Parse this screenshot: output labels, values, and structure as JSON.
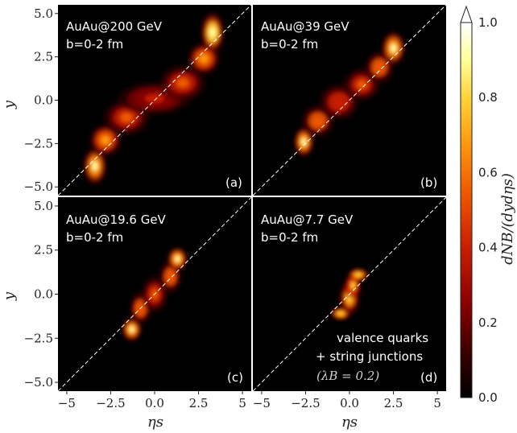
{
  "figure": {
    "panels": [
      {
        "id": "a",
        "title": "AuAu@200 GeV",
        "subtitle": "b=0-2 fm",
        "tag": "(a)"
      },
      {
        "id": "b",
        "title": "AuAu@39 GeV",
        "subtitle": "b=0-2 fm",
        "tag": "(b)"
      },
      {
        "id": "c",
        "title": "AuAu@19.6 GeV",
        "subtitle": "b=0-2 fm",
        "tag": "(c)"
      },
      {
        "id": "d",
        "title": "AuAu@7.7 GeV",
        "subtitle": "b=0-2 fm",
        "tag": "(d)"
      }
    ],
    "note_line1": "valence quarks",
    "note_line2": "+ string junctions",
    "note_line3": "(λB = 0.2)",
    "x_ticks": [
      "−5",
      "−2.5",
      "0.0",
      "2.5",
      "5"
    ],
    "y_ticks": [
      "5.0",
      "2.5",
      "0.0",
      "−2.5",
      "−5.0"
    ],
    "xlabel": "ηs",
    "ylabel": "y",
    "colorbar_label": "dNB/(dydηs)",
    "colorbar_ticks": [
      "1.0",
      "0.8",
      "0.6",
      "0.4",
      "0.2",
      "0.0"
    ]
  },
  "chart_data": {
    "type": "heatmap",
    "colormap": [
      "#000000",
      "#3a0000",
      "#8a0000",
      "#c81e00",
      "#f05a00",
      "#ff9a10",
      "#ffd43a",
      "#ffff9a",
      "#ffffff"
    ],
    "xlim": [
      -5.5,
      5.5
    ],
    "ylim": [
      -5.5,
      5.5
    ],
    "clim": [
      0.0,
      1.0
    ],
    "diagonal": "y = ηs (white dashed)",
    "panels": [
      {
        "id": "a",
        "blobs": [
          {
            "x": -3.4,
            "y": -3.8,
            "sx": 0.35,
            "sy": 0.55,
            "v": 0.85
          },
          {
            "x": -2.8,
            "y": -2.3,
            "sx": 0.5,
            "sy": 0.5,
            "v": 0.6
          },
          {
            "x": -1.6,
            "y": -1.0,
            "sx": 0.7,
            "sy": 0.55,
            "v": 0.45
          },
          {
            "x": 0.0,
            "y": 0.1,
            "sx": 1.1,
            "sy": 0.5,
            "v": 0.35
          },
          {
            "x": 1.6,
            "y": 1.0,
            "sx": 0.7,
            "sy": 0.55,
            "v": 0.45
          },
          {
            "x": 2.8,
            "y": 2.4,
            "sx": 0.5,
            "sy": 0.5,
            "v": 0.6
          },
          {
            "x": 3.3,
            "y": 3.9,
            "sx": 0.35,
            "sy": 0.6,
            "v": 0.9
          }
        ]
      },
      {
        "id": "b",
        "blobs": [
          {
            "x": -2.6,
            "y": -2.4,
            "sx": 0.3,
            "sy": 0.45,
            "v": 0.85
          },
          {
            "x": -1.8,
            "y": -1.2,
            "sx": 0.5,
            "sy": 0.5,
            "v": 0.55
          },
          {
            "x": -0.6,
            "y": -0.1,
            "sx": 0.6,
            "sy": 0.55,
            "v": 0.4
          },
          {
            "x": 0.7,
            "y": 0.9,
            "sx": 0.55,
            "sy": 0.5,
            "v": 0.45
          },
          {
            "x": 1.7,
            "y": 1.9,
            "sx": 0.45,
            "sy": 0.5,
            "v": 0.55
          },
          {
            "x": 2.5,
            "y": 3.0,
            "sx": 0.35,
            "sy": 0.5,
            "v": 0.85
          }
        ]
      },
      {
        "id": "c",
        "blobs": [
          {
            "x": -1.3,
            "y": -2.0,
            "sx": 0.3,
            "sy": 0.35,
            "v": 0.85
          },
          {
            "x": -0.8,
            "y": -0.8,
            "sx": 0.35,
            "sy": 0.5,
            "v": 0.55
          },
          {
            "x": 0.0,
            "y": 0.0,
            "sx": 0.4,
            "sy": 0.55,
            "v": 0.45
          },
          {
            "x": 0.9,
            "y": 1.0,
            "sx": 0.35,
            "sy": 0.5,
            "v": 0.55
          },
          {
            "x": 1.3,
            "y": 2.0,
            "sx": 0.3,
            "sy": 0.35,
            "v": 0.85
          }
        ]
      },
      {
        "id": "d",
        "blobs": [
          {
            "x": -0.5,
            "y": -1.1,
            "sx": 0.3,
            "sy": 0.2,
            "v": 0.8
          },
          {
            "x": 0.0,
            "y": -0.2,
            "sx": 0.3,
            "sy": 0.5,
            "v": 0.75
          },
          {
            "x": 0.2,
            "y": 0.5,
            "sx": 0.25,
            "sy": 0.4,
            "v": 0.7
          },
          {
            "x": 0.5,
            "y": 1.1,
            "sx": 0.3,
            "sy": 0.2,
            "v": 0.8
          }
        ]
      }
    ]
  }
}
